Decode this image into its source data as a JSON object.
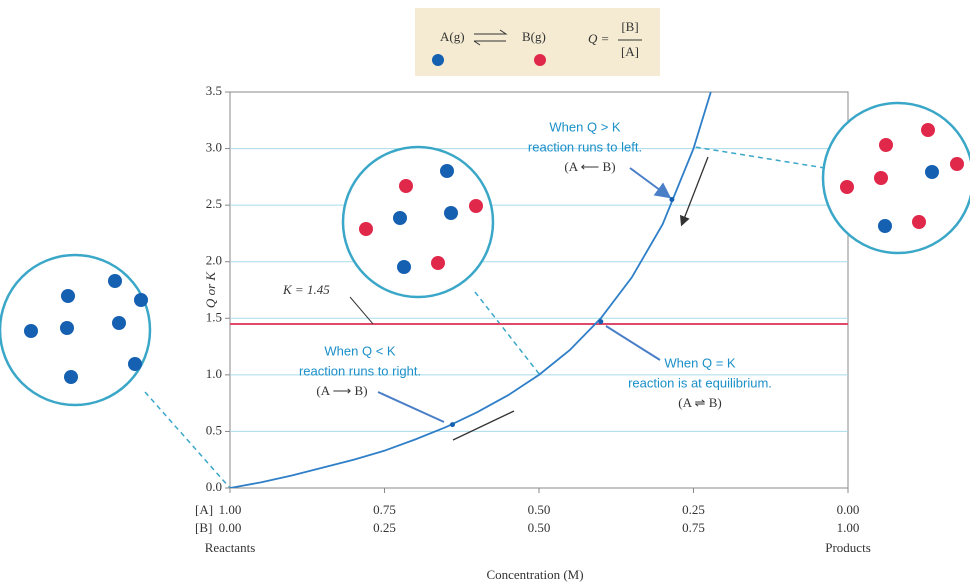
{
  "header": {
    "reactant": "A(g)",
    "product": "B(g)",
    "q_label": "Q =",
    "numerator": "[B]",
    "denominator": "[A]"
  },
  "chart_data": {
    "type": "line",
    "y_label": "Q or K",
    "x_label": "Concentration (M)",
    "row_a_label": "[A]",
    "row_b_label": "[B]",
    "left_label": "Reactants",
    "right_label": "Products",
    "x": [
      0,
      0.05,
      0.1,
      0.15,
      0.2,
      0.25,
      0.3,
      0.35,
      0.4,
      0.45,
      0.5,
      0.55,
      0.6,
      0.65,
      0.7,
      0.75,
      0.778
    ],
    "series": [
      {
        "name": "Q",
        "color": "#2f7fc8",
        "values": [
          0,
          0.05,
          0.11,
          0.18,
          0.25,
          0.33,
          0.43,
          0.54,
          0.67,
          0.82,
          1.0,
          1.22,
          1.5,
          1.86,
          2.33,
          3.0,
          3.5
        ]
      }
    ],
    "k_line": {
      "label": "K = 1.45",
      "value": 1.45,
      "color": "#e04a6a"
    },
    "markers": [
      {
        "x": 0.36,
        "y": 0.56
      },
      {
        "x": 0.6,
        "y": 1.47
      },
      {
        "x": 0.715,
        "y": 2.55
      }
    ],
    "annotations": [
      {
        "lines": [
          "When Q < K",
          "reaction runs to right.",
          "(A ⟶ B)"
        ]
      },
      {
        "lines": [
          "When Q = K",
          "reaction is at equilibrium.",
          "(A ⇌ B)"
        ]
      },
      {
        "lines": [
          "When Q > K",
          "reaction runs to left.",
          "(A ⟵ B)"
        ]
      }
    ],
    "xlim": [
      0,
      1
    ],
    "ylim": [
      0,
      3.5
    ],
    "yticks": [
      {
        "value": 0,
        "label": "0.0"
      },
      0.5,
      {
        "value": 1,
        "label": "1.0"
      },
      1.5,
      {
        "value": 2,
        "label": "2.0"
      },
      2.5,
      {
        "value": 3,
        "label": "3.0"
      },
      3.5
    ],
    "xticks": [
      {
        "value": 0,
        "label": "0.00"
      },
      0.25,
      {
        "value": 0.5,
        "label": "0.50"
      },
      0.75,
      {
        "value": 1,
        "label": "1.00"
      }
    ],
    "xticks_a": [
      {
        "value": 0,
        "label": "1.00"
      },
      {
        "value": 0.25,
        "label": "0.75"
      },
      {
        "value": 0.5,
        "label": "0.50"
      },
      {
        "value": 0.75,
        "label": "0.25"
      },
      {
        "value": 1,
        "label": "0.00"
      }
    ],
    "grid": true
  }
}
